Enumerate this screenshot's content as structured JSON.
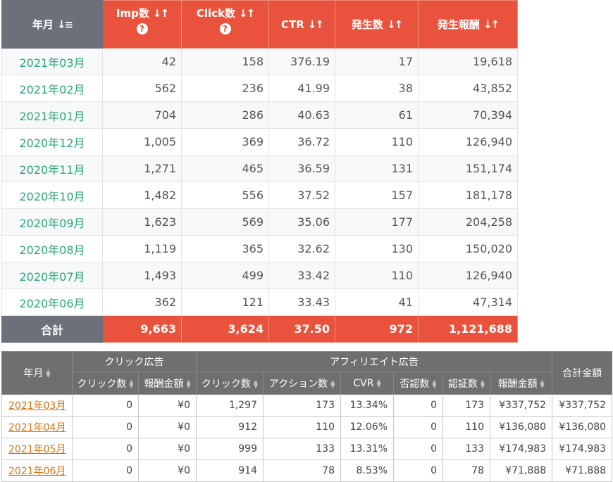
{
  "monthly_table": {
    "headers": {
      "month": "年月",
      "imp": "Imp数",
      "click": "Click数",
      "ctr": "CTR",
      "occur": "発生数",
      "reward": "発生報酬"
    },
    "help_glyph": "?",
    "rows": [
      {
        "month": "2021年03月",
        "imp": "42",
        "click": "158",
        "ctr": "376.19",
        "occur": "17",
        "reward": "19,618"
      },
      {
        "month": "2021年02月",
        "imp": "562",
        "click": "236",
        "ctr": "41.99",
        "occur": "38",
        "reward": "43,852"
      },
      {
        "month": "2021年01月",
        "imp": "704",
        "click": "286",
        "ctr": "40.63",
        "occur": "61",
        "reward": "70,394"
      },
      {
        "month": "2020年12月",
        "imp": "1,005",
        "click": "369",
        "ctr": "36.72",
        "occur": "110",
        "reward": "126,940"
      },
      {
        "month": "2020年11月",
        "imp": "1,271",
        "click": "465",
        "ctr": "36.59",
        "occur": "131",
        "reward": "151,174"
      },
      {
        "month": "2020年10月",
        "imp": "1,482",
        "click": "556",
        "ctr": "37.52",
        "occur": "157",
        "reward": "181,178"
      },
      {
        "month": "2020年09月",
        "imp": "1,623",
        "click": "569",
        "ctr": "35.06",
        "occur": "177",
        "reward": "204,258"
      },
      {
        "month": "2020年08月",
        "imp": "1,119",
        "click": "365",
        "ctr": "32.62",
        "occur": "130",
        "reward": "150,020"
      },
      {
        "month": "2020年07月",
        "imp": "1,493",
        "click": "499",
        "ctr": "33.42",
        "occur": "110",
        "reward": "126,940"
      },
      {
        "month": "2020年06月",
        "imp": "362",
        "click": "121",
        "ctr": "33.43",
        "occur": "41",
        "reward": "47,314"
      }
    ],
    "total": {
      "label": "合計",
      "imp": "9,663",
      "click": "3,624",
      "ctr": "37.50",
      "occur": "972",
      "reward": "1,121,688"
    }
  },
  "affiliate_table": {
    "headers": {
      "month": "年月",
      "click_ad_group": "クリック広告",
      "affiliate_group": "アフィリエイト広告",
      "total_amount": "合計金額",
      "click_count": "クリック数",
      "reward_amount": "報酬金額",
      "aff_click_count": "クリック数",
      "action_count": "アクション数",
      "cvr": "CVR",
      "rejected": "否認数",
      "approved": "認証数",
      "aff_reward_amount": "報酬金額"
    },
    "rows": [
      {
        "month": "2021年03月",
        "click_count": "0",
        "reward": "¥0",
        "aff_click": "1,297",
        "actions": "173",
        "cvr": "13.34%",
        "rejected": "0",
        "approved": "173",
        "aff_reward": "¥337,752",
        "total": "¥337,752"
      },
      {
        "month": "2021年04月",
        "click_count": "0",
        "reward": "¥0",
        "aff_click": "912",
        "actions": "110",
        "cvr": "12.06%",
        "rejected": "0",
        "approved": "110",
        "aff_reward": "¥136,080",
        "total": "¥136,080"
      },
      {
        "month": "2021年05月",
        "click_count": "0",
        "reward": "¥0",
        "aff_click": "999",
        "actions": "133",
        "cvr": "13.31%",
        "rejected": "0",
        "approved": "133",
        "aff_reward": "¥174,983",
        "total": "¥174,983"
      },
      {
        "month": "2021年06月",
        "click_count": "0",
        "reward": "¥0",
        "aff_click": "914",
        "actions": "78",
        "cvr": "8.53%",
        "rejected": "0",
        "approved": "78",
        "aff_reward": "¥71,888",
        "total": "¥71,888"
      }
    ]
  },
  "colors": {
    "header_gray": "#6b7079",
    "header_red": "#e9533e",
    "date_green": "#2aa876",
    "link_orange": "#d9720f",
    "header2_gray": "#6f6f6f"
  },
  "icons": {
    "sort_desc": "sort-descending-icon",
    "sort_both": "sort-arrows-icon",
    "help": "question-circle-icon",
    "sort_small": "sort-caret-icon"
  }
}
